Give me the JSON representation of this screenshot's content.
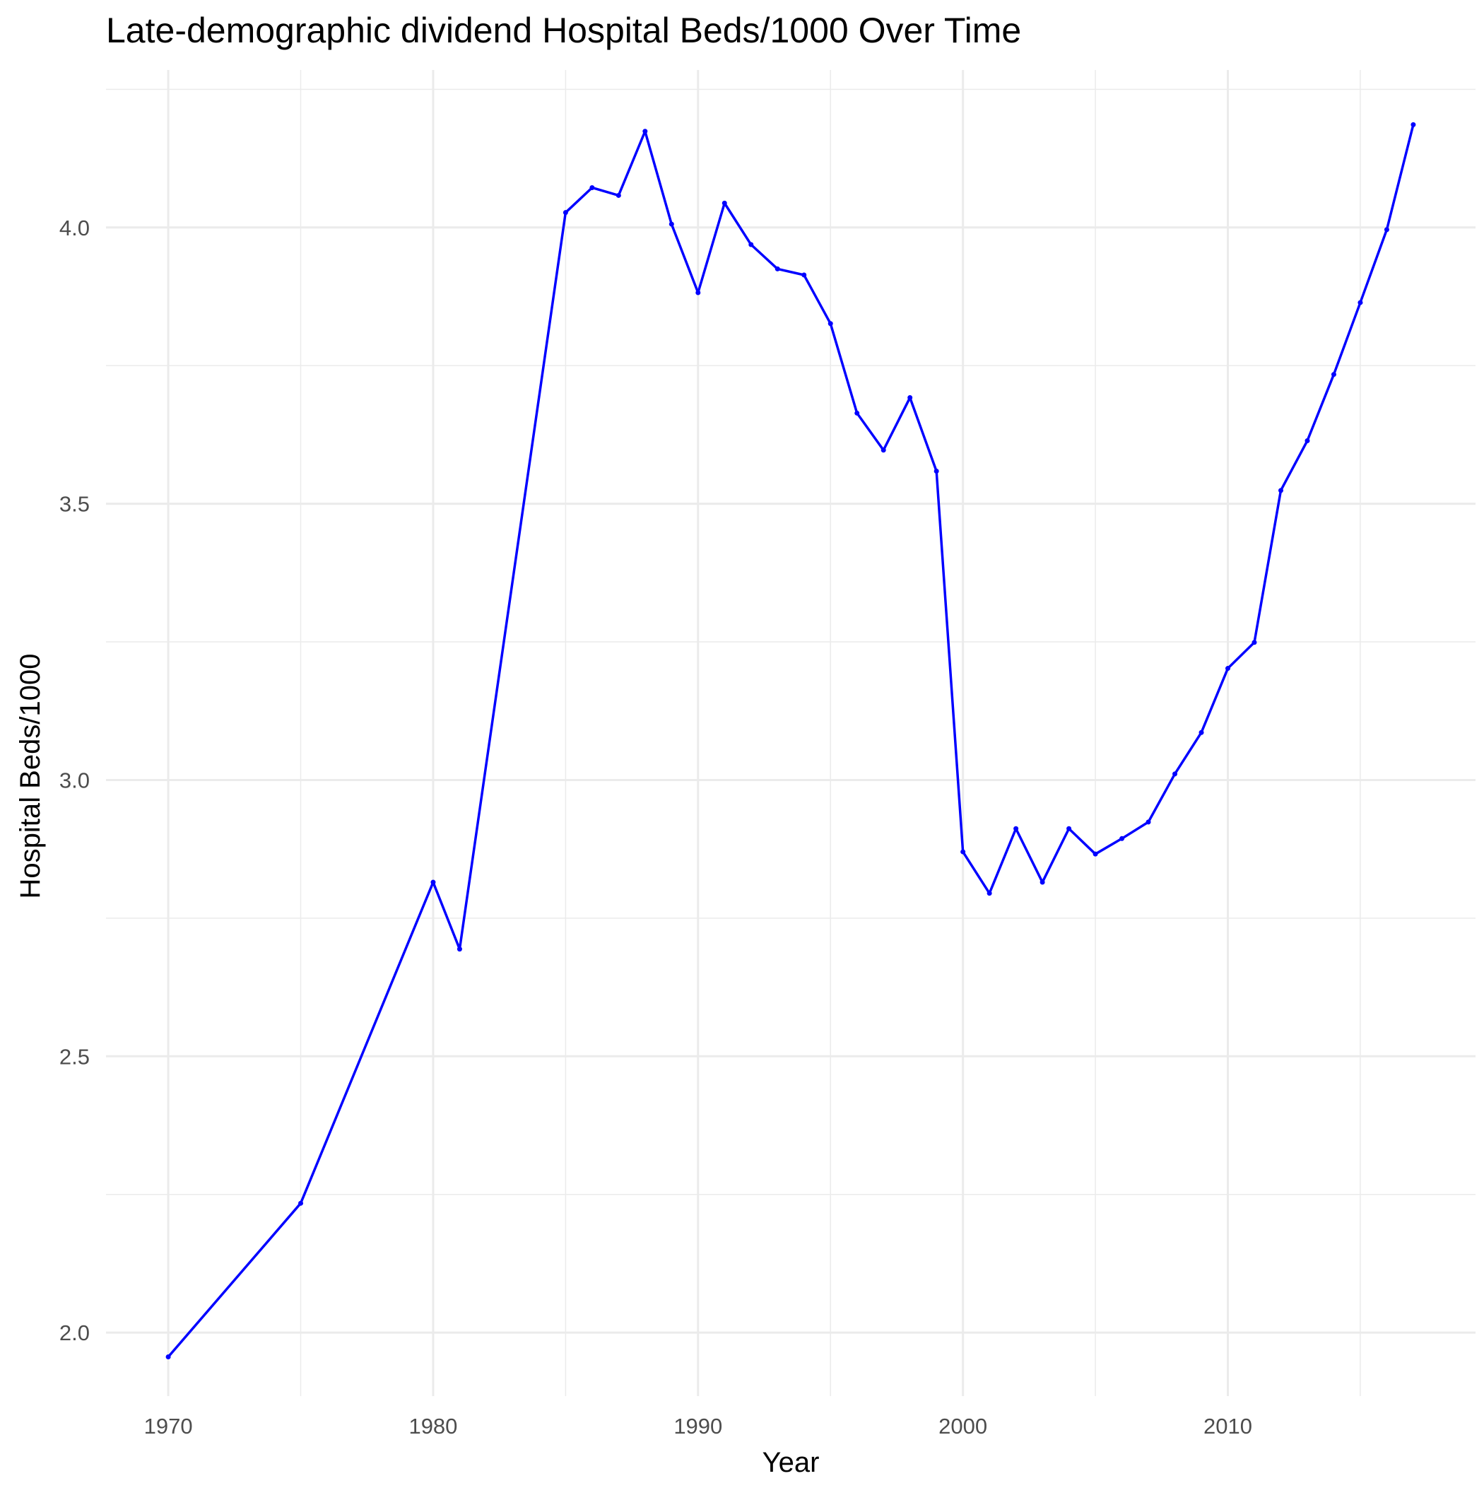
{
  "chart_data": {
    "type": "line",
    "title": "Late-demographic dividend Hospital Beds/1000 Over Time",
    "xlabel": "Year",
    "ylabel": "Hospital Beds/1000",
    "xlim": [
      1967.65,
      2019.35
    ],
    "ylim": [
      1.885,
      4.285
    ],
    "x_ticks": [
      1970,
      1980,
      1990,
      2000,
      2010
    ],
    "y_ticks": [
      2.0,
      2.5,
      3.0,
      3.5,
      4.0
    ],
    "x_tick_labels": [
      "1970",
      "1980",
      "1990",
      "2000",
      "2010"
    ],
    "y_tick_labels": [
      "2.0",
      "2.5",
      "3.0",
      "3.5",
      "4.0"
    ],
    "grid": true,
    "legend": "none",
    "line_color": "#0000ff",
    "series": [
      {
        "x": [
          1970,
          1975,
          1980,
          1981,
          1985,
          1986,
          1987,
          1988,
          1989,
          1990,
          1991,
          1992,
          1993,
          1994,
          1995,
          1996,
          1997,
          1998,
          1999,
          2000,
          2001,
          2002,
          2003,
          2004,
          2005,
          2006,
          2007,
          2008,
          2009,
          2010,
          2011,
          2012,
          2013,
          2014,
          2015,
          2016,
          2017
        ],
        "y": [
          1.956,
          2.234,
          2.815,
          2.694,
          4.027,
          4.072,
          4.058,
          4.174,
          4.006,
          3.882,
          4.044,
          3.969,
          3.925,
          3.914,
          3.826,
          3.664,
          3.597,
          3.692,
          3.559,
          2.87,
          2.795,
          2.912,
          2.815,
          2.912,
          2.866,
          2.894,
          2.924,
          3.011,
          3.086,
          3.202,
          3.249,
          3.524,
          3.614,
          3.734,
          3.864,
          3.996,
          4.186
        ]
      }
    ]
  }
}
